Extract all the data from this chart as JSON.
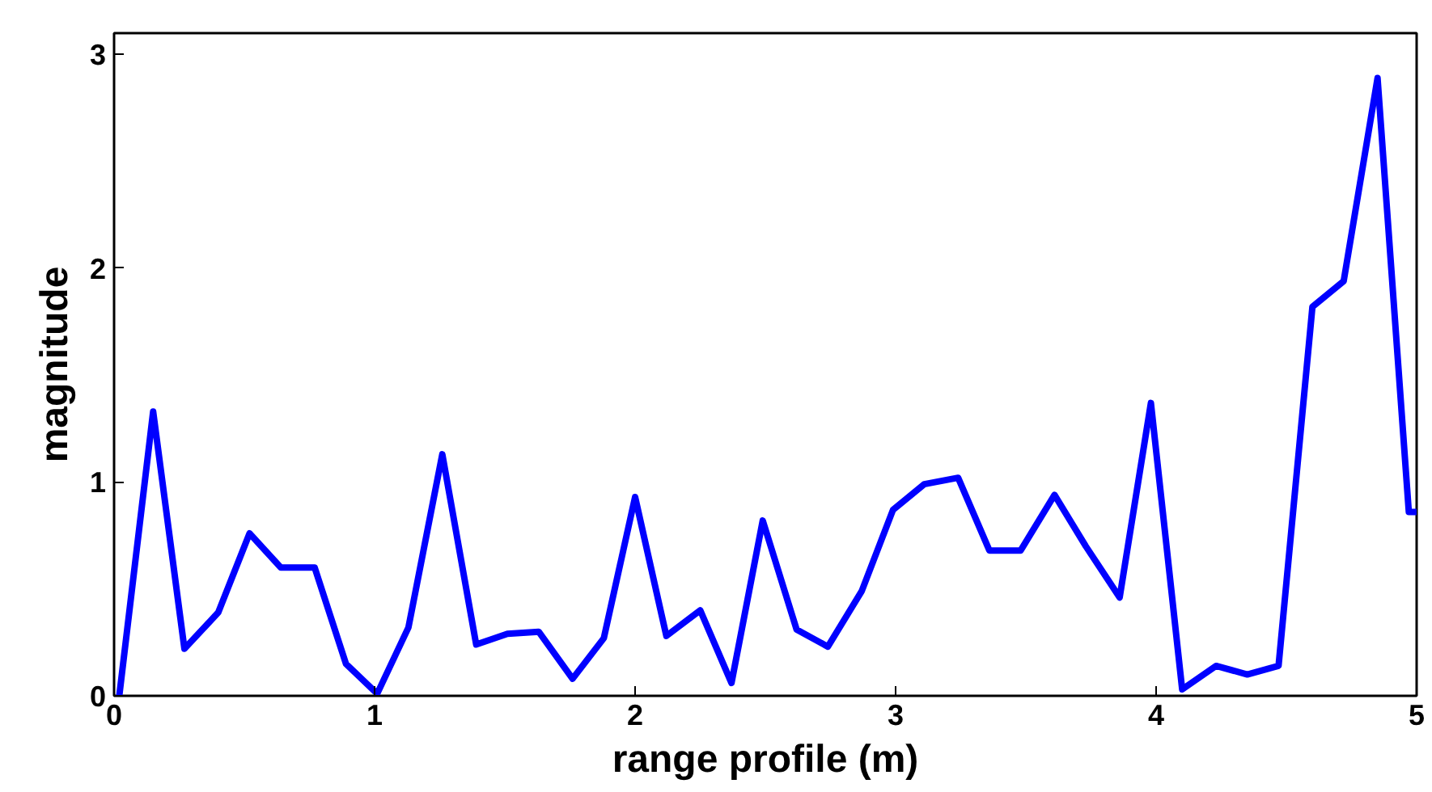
{
  "chart_data": {
    "type": "line",
    "xlabel": "range profile (m)",
    "ylabel": "magnitude",
    "x": [
      0.02,
      0.15,
      0.27,
      0.4,
      0.52,
      0.64,
      0.77,
      0.89,
      1.01,
      1.13,
      1.26,
      1.39,
      1.51,
      1.63,
      1.76,
      1.88,
      2.0,
      2.12,
      2.25,
      2.37,
      2.49,
      2.62,
      2.74,
      2.87,
      2.99,
      3.11,
      3.24,
      3.36,
      3.48,
      3.61,
      3.73,
      3.86,
      3.98,
      4.1,
      4.23,
      4.35,
      4.47,
      4.6,
      4.72,
      4.85,
      4.97,
      5.0
    ],
    "series": [
      {
        "color": "#0000ff",
        "values": [
          0.0,
          1.33,
          0.22,
          0.39,
          0.76,
          0.6,
          0.6,
          0.15,
          0.01,
          0.32,
          1.13,
          0.24,
          0.29,
          0.3,
          0.08,
          0.27,
          0.93,
          0.28,
          0.4,
          0.06,
          0.82,
          0.31,
          0.23,
          0.49,
          0.87,
          0.99,
          1.02,
          0.68,
          0.68,
          0.94,
          0.7,
          0.46,
          1.37,
          0.03,
          0.14,
          0.1,
          0.14,
          1.82,
          1.94,
          2.89,
          0.86,
          0.86
        ]
      }
    ],
    "xlim": [
      0,
      5
    ],
    "ylim": [
      0,
      3.1
    ],
    "xticks": [
      0,
      1,
      2,
      3,
      4,
      5
    ],
    "yticks": [
      0,
      1,
      2,
      3
    ],
    "grid": false,
    "marker": "none",
    "line_style": "solid"
  }
}
